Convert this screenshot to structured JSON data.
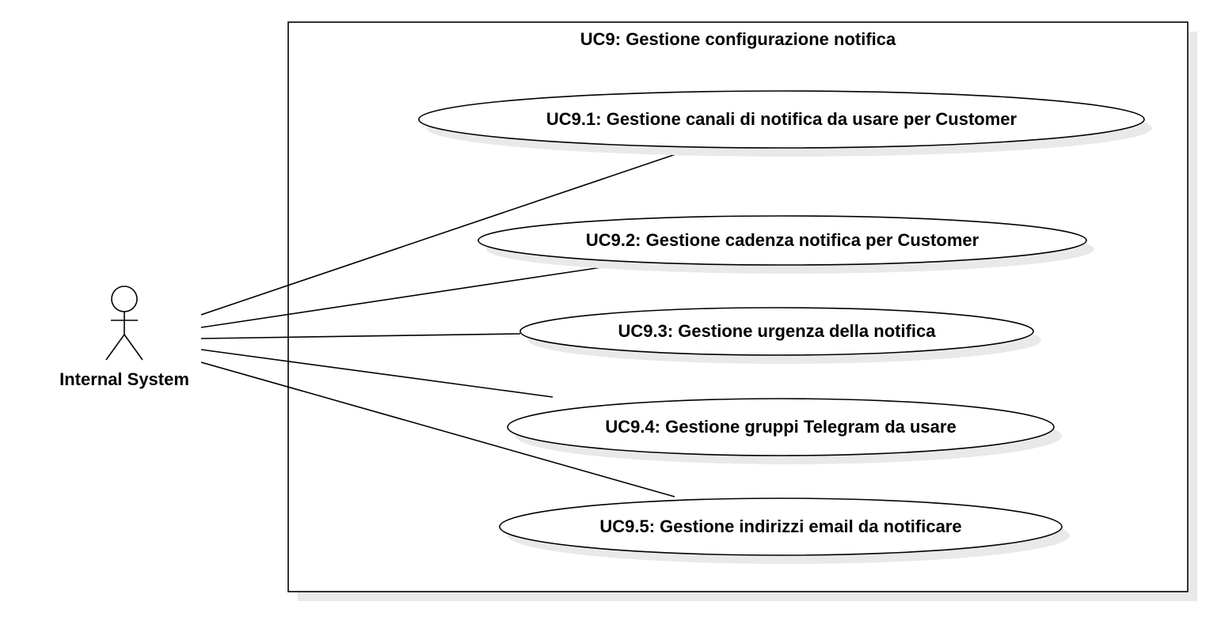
{
  "diagram": {
    "type": "uml-use-case",
    "system": {
      "title": "UC9: Gestione configurazione notifica"
    },
    "actor": {
      "name": "Internal System"
    },
    "use_cases": [
      {
        "id": "uc9-1",
        "label": "UC9.1: Gestione canali di notifica da usare per Customer"
      },
      {
        "id": "uc9-2",
        "label": "UC9.2: Gestione cadenza notifica per Customer"
      },
      {
        "id": "uc9-3",
        "label": "UC9.3: Gestione urgenza della notifica"
      },
      {
        "id": "uc9-4",
        "label": "UC9.4: Gestione gruppi Telegram da usare"
      },
      {
        "id": "uc9-5",
        "label": "UC9.5: Gestione indirizzi email da notificare"
      }
    ],
    "associations": [
      {
        "from": "actor",
        "to": "uc9-1"
      },
      {
        "from": "actor",
        "to": "uc9-2"
      },
      {
        "from": "actor",
        "to": "uc9-3"
      },
      {
        "from": "actor",
        "to": "uc9-4"
      },
      {
        "from": "actor",
        "to": "uc9-5"
      }
    ],
    "colors": {
      "stroke": "#000000",
      "fill": "#ffffff",
      "shadow": "#e9e9e9"
    }
  }
}
